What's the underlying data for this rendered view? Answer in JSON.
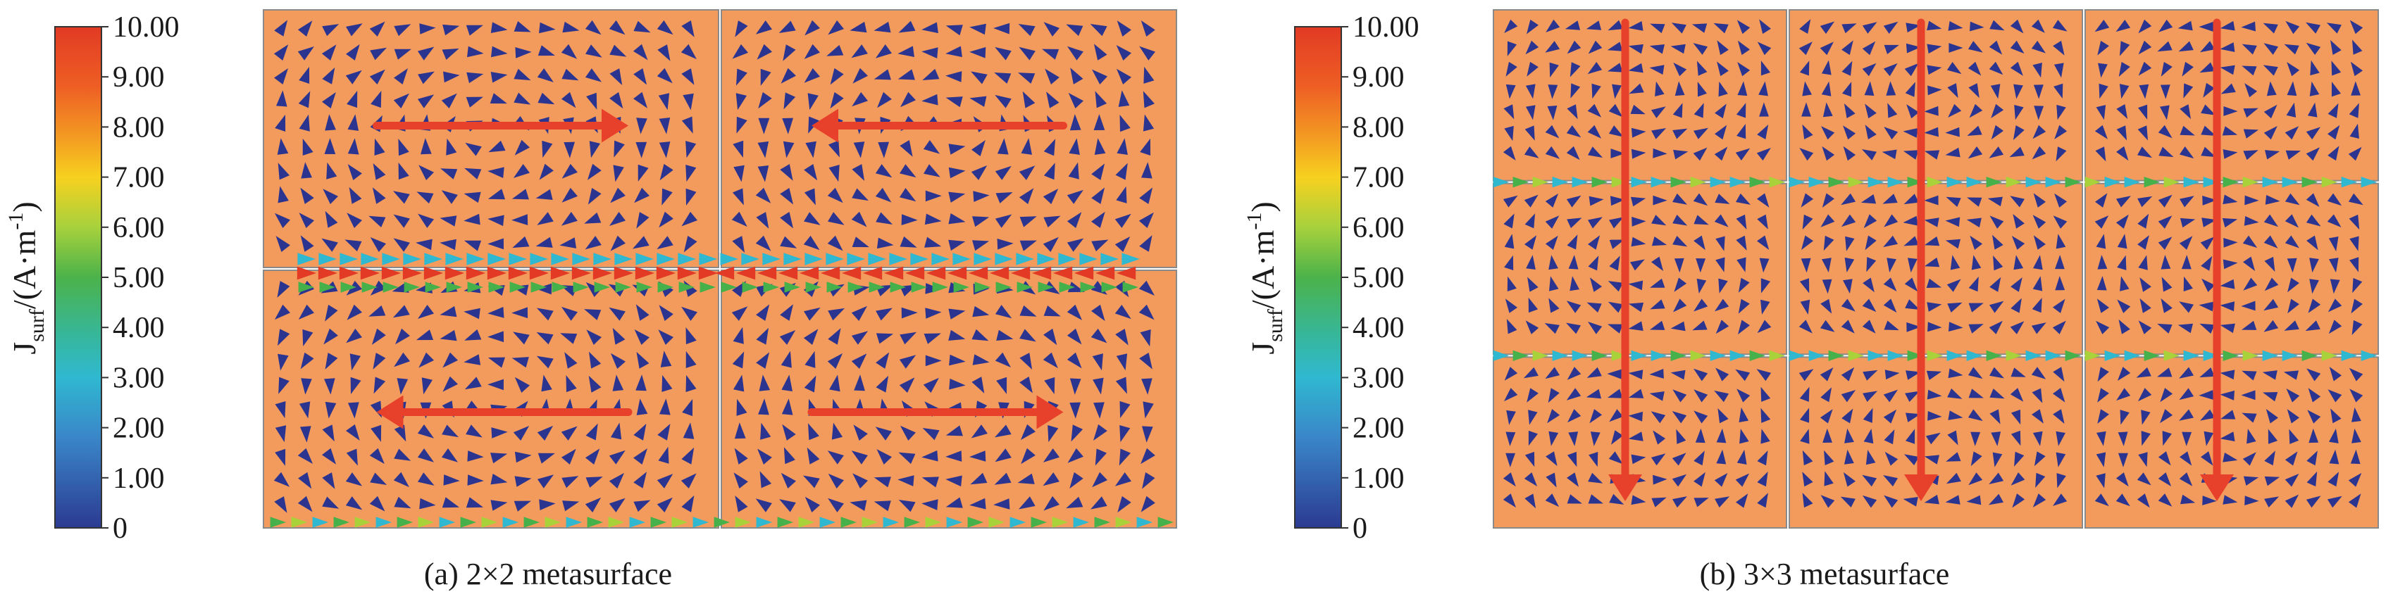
{
  "colorbar": {
    "ticks": [
      "10.00",
      "9.00",
      "8.00",
      "7.00",
      "6.00",
      "5.00",
      "4.00",
      "3.00",
      "2.00",
      "1.00",
      "0"
    ],
    "range": [
      0,
      10
    ],
    "label": {
      "main": "J",
      "sub": "surf",
      "unit": "/(A·m",
      "exp": "-1",
      "close": ")"
    },
    "colors": [
      "#e23a24",
      "#f07822",
      "#f7c21f",
      "#a9d23a",
      "#46b04a",
      "#2fb7c4",
      "#3a82c7",
      "#2b3f95"
    ]
  },
  "panels": [
    {
      "caption": "(a) 2×2 metasurface",
      "grid": 2,
      "cell_color": "#f39b5c",
      "current_arrows": [
        "right",
        "left",
        "left",
        "right"
      ]
    },
    {
      "caption": "(b) 3×3 metasurface",
      "grid": 3,
      "cell_color": "#f39b5c",
      "current_arrows": [
        "down",
        "down",
        "down"
      ]
    }
  ],
  "arrow_colors": {
    "vector": "#2b3590",
    "current": "#e8412b"
  }
}
